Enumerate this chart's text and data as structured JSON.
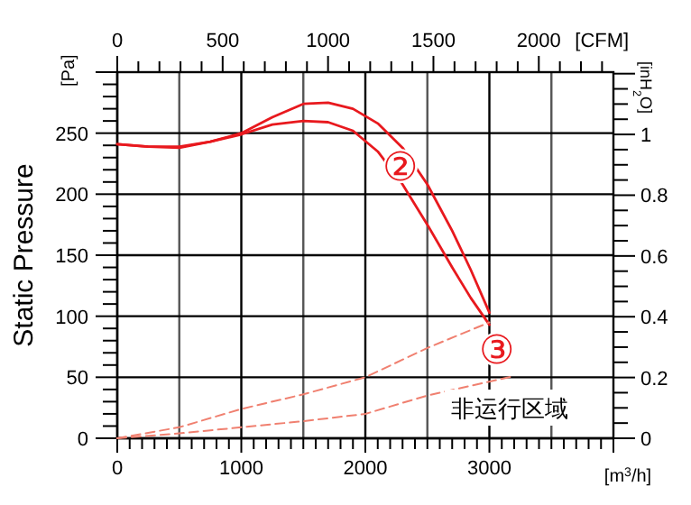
{
  "chart_data": {
    "type": "line",
    "ylabel": "Static Pressure",
    "xlabel": "[m$^{3}$/h]",
    "x2label": "[CFM]",
    "y2label": "[inH$_{2}$O]",
    "xlim": [
      0,
      4000
    ],
    "xticks": [
      0,
      1000,
      2000,
      3000
    ],
    "x2lim": [
      0,
      2354
    ],
    "x2ticks": [
      0,
      500,
      1000,
      1500,
      2000
    ],
    "ylim": [
      0,
      300
    ],
    "yticks": [
      0,
      50,
      100,
      150,
      200,
      250
    ],
    "y2lim": [
      0,
      1.205
    ],
    "y2ticks": [
      0,
      0.2,
      0.4,
      0.6,
      0.8,
      1
    ],
    "grid": true,
    "annotations": [
      "[Pa]",
      "非运行区域",
      {
        "text": "②",
        "x": 2400,
        "y": 223
      },
      {
        "text": "③",
        "x": 3000,
        "y": 95
      }
    ],
    "series": [
      {
        "color": "#e8191e",
        "line_style": "solid",
        "x": [
          0,
          250,
          500,
          750,
          1000,
          1250,
          1500,
          1700,
          1900,
          2100,
          2300,
          2500,
          2700,
          2850,
          3000
        ],
        "values": [
          241,
          239,
          238,
          243,
          250,
          263,
          274,
          275,
          270,
          258,
          238,
          208,
          170,
          138,
          103
        ]
      },
      {
        "color": "#e8191e",
        "line_style": "solid",
        "x": [
          0,
          250,
          500,
          750,
          1000,
          1250,
          1500,
          1700,
          1900,
          2100,
          2300,
          2500,
          2700,
          2850,
          3000
        ],
        "values": [
          241,
          239,
          239,
          243,
          249,
          257,
          260,
          259,
          252,
          235,
          208,
          175,
          140,
          115,
          93
        ]
      },
      {
        "color": "#f08070",
        "line_style": "dashed",
        "x": [
          0,
          500,
          1000,
          1500,
          2000,
          2500,
          3000
        ],
        "values": [
          0,
          9,
          24,
          36,
          50,
          74,
          95
        ]
      },
      {
        "color": "#f08070",
        "line_style": "dashed",
        "x": [
          0,
          500,
          1000,
          1500,
          2000,
          2500,
          3200
        ],
        "values": [
          0,
          4,
          9,
          14,
          20,
          35,
          51
        ]
      }
    ]
  }
}
